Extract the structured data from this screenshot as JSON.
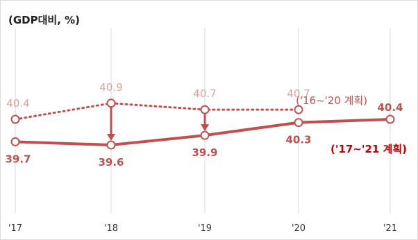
{
  "chart_data": {
    "type": "line",
    "unit_label": "(GDP대비, %)",
    "categories": [
      "'17",
      "'18",
      "'19",
      "'20",
      "'21"
    ],
    "ylim": [
      38.5,
      41.5
    ],
    "grid": "vertical",
    "series": [
      {
        "name": "('16~'20 계획)",
        "style": "dotted",
        "color": "#c0504d",
        "values": [
          40.4,
          40.9,
          40.7,
          40.7,
          null
        ],
        "labels": [
          "40.4",
          "40.9",
          "40.7",
          "40.7",
          ""
        ]
      },
      {
        "name": "('17~'21 계획)",
        "style": "solid",
        "color": "#c0504d",
        "values": [
          39.7,
          39.6,
          39.9,
          40.3,
          40.4
        ],
        "labels": [
          "39.7",
          "39.6",
          "39.9",
          "40.3",
          "40.4"
        ]
      }
    ],
    "annotations": [
      {
        "type": "arrow",
        "from": "('16~'20 계획)",
        "to": "('17~'21 계획)",
        "category": "'18"
      },
      {
        "type": "arrow",
        "from": "('16~'20 계획)",
        "to": "('17~'21 계획)",
        "category": "'19"
      }
    ]
  }
}
